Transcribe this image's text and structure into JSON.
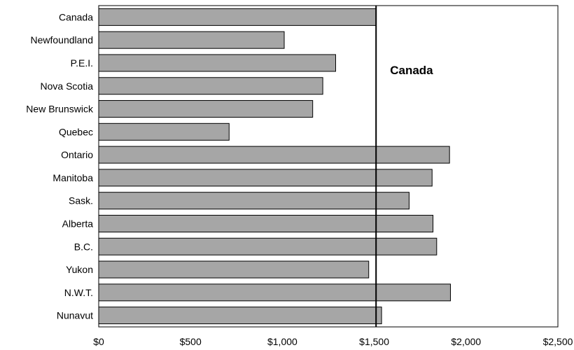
{
  "chart_data": {
    "type": "bar",
    "orientation": "horizontal",
    "categories": [
      "Canada",
      "Newfoundland",
      "P.E.I.",
      "Nova Scotia",
      "New Brunswick",
      "Quebec",
      "Ontario",
      "Manitoba",
      "Sask.",
      "Alberta",
      "B.C.",
      "Yukon",
      "N.W.T.",
      "Nunavut"
    ],
    "values": [
      1510,
      1010,
      1290,
      1220,
      1165,
      710,
      1910,
      1815,
      1690,
      1820,
      1840,
      1470,
      1915,
      1540
    ],
    "xlim": [
      0,
      2500
    ],
    "x_ticks": [
      0,
      500,
      1000,
      1500,
      2000,
      2500
    ],
    "x_tick_labels": [
      "$0",
      "$500",
      "$1,000",
      "$1,500",
      "$2,000",
      "$2,500"
    ],
    "reference_line": {
      "value": 1510,
      "label": "Canada"
    },
    "bar_color": "#a6a6a6",
    "bar_edge_color": "#000000",
    "grid": false,
    "legend": "none"
  }
}
